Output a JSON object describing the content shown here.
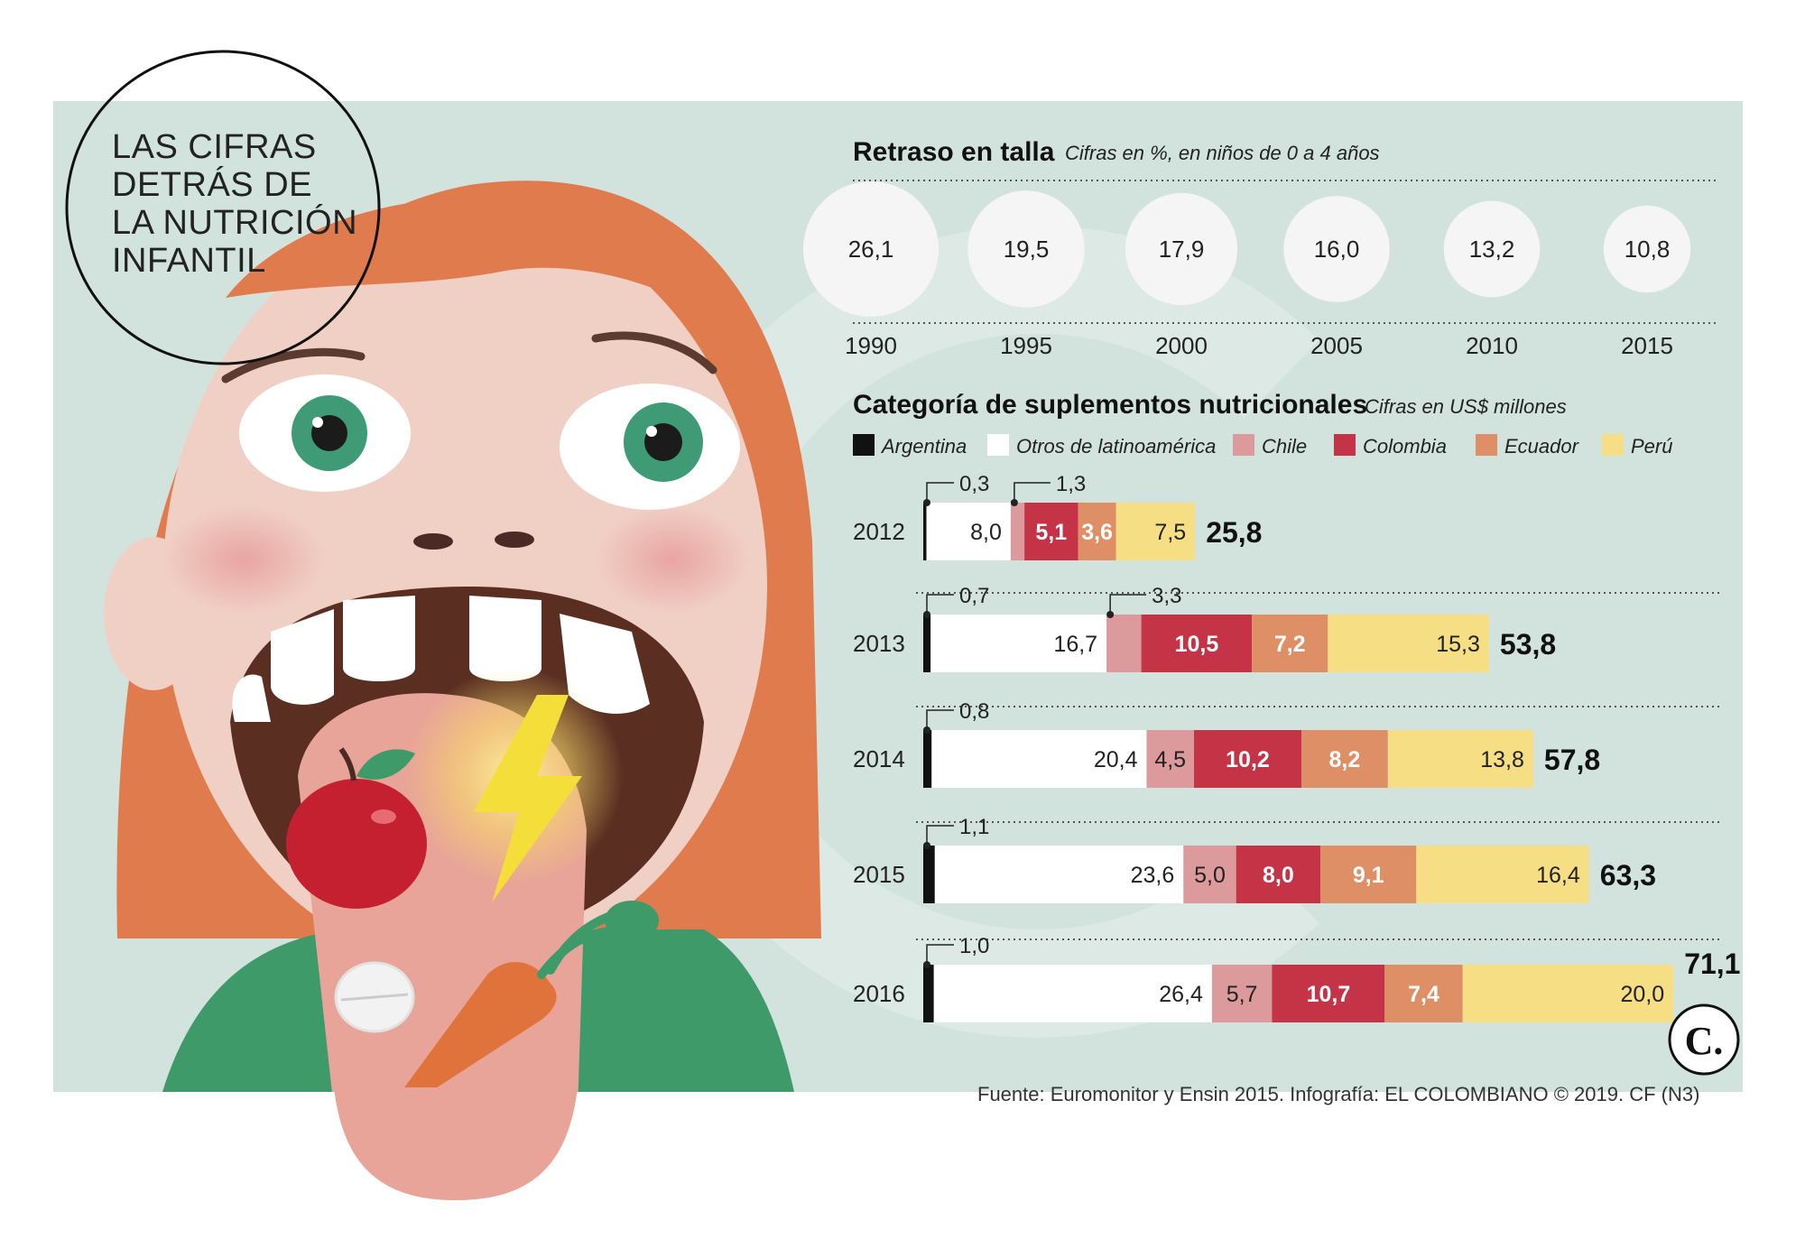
{
  "colors": {
    "background_panel": "#d2e3dd",
    "argentina": "#111111",
    "otros": "#ffffff",
    "chile": "#dd9a9c",
    "colombia": "#c43346",
    "ecuador": "#de8f66",
    "peru": "#f5de84",
    "circle": "#f5f5f5",
    "hair": "#e07b4d",
    "face": "#f0cfc4",
    "tongue": "#e8a498",
    "shirt": "#3f9a6a"
  },
  "header": {
    "title_lines": [
      "LAS CIFRAS",
      "DETRÁS DE",
      "LA NUTRICIÓN",
      "INFANTIL"
    ]
  },
  "stunting": {
    "title": "Retraso en talla",
    "subtitle": "Cifras en %, en niños de 0 a 4 años"
  },
  "supplements": {
    "title": "Categoría de suplementos nutricionales",
    "subtitle": "Cifras en US$ millones"
  },
  "illustration": {
    "icons": [
      "girl-face-icon",
      "apple-icon",
      "lightning-icon",
      "pill-icon",
      "carrot-icon"
    ]
  },
  "footer": {
    "source": "Fuente: Euromonitor y Ensin 2015. Infografía: EL COLOMBIANO © 2019. CF (N3)",
    "logo": "C."
  },
  "chart_data": [
    {
      "type": "bubble",
      "title": "Retraso en talla",
      "subtitle": "Cifras en %, en niños de 0 a 4 años",
      "categories": [
        "1990",
        "1995",
        "2000",
        "2005",
        "2010",
        "2015"
      ],
      "values": [
        26.1,
        19.5,
        17.9,
        16.0,
        13.2,
        10.8
      ],
      "value_labels": [
        "26,1",
        "19,5",
        "17,9",
        "16,0",
        "13,2",
        "10,8"
      ]
    },
    {
      "type": "bar",
      "orientation": "horizontal",
      "stacked": true,
      "title": "Categoría de suplementos nutricionales",
      "subtitle": "Cifras en US$ millones",
      "categories": [
        "2012",
        "2013",
        "2014",
        "2015",
        "2016"
      ],
      "legend_position": "top",
      "series": [
        {
          "name": "Argentina",
          "values": [
            0.3,
            0.7,
            0.8,
            1.1,
            1.0
          ],
          "labels": [
            "0,3",
            "0,7",
            "0,8",
            "1,1",
            "1,0"
          ]
        },
        {
          "name": "Otros de latinoamérica",
          "values": [
            8.0,
            16.7,
            20.4,
            23.6,
            26.4
          ],
          "labels": [
            "8,0",
            "16,7",
            "20,4",
            "23,6",
            "26,4"
          ]
        },
        {
          "name": "Chile",
          "values": [
            1.3,
            3.3,
            4.5,
            5.0,
            5.7
          ],
          "labels": [
            "1,3",
            "3,3",
            "4,5",
            "5,0",
            "5,7"
          ]
        },
        {
          "name": "Colombia",
          "values": [
            5.1,
            10.5,
            10.2,
            8.0,
            10.7
          ],
          "labels": [
            "5,1",
            "10,5",
            "10,2",
            "8,0",
            "10,7"
          ]
        },
        {
          "name": "Ecuador",
          "values": [
            3.6,
            7.2,
            8.2,
            9.1,
            7.4
          ],
          "labels": [
            "3,6",
            "7,2",
            "8,2",
            "9,1",
            "7,4"
          ]
        },
        {
          "name": "Perú",
          "values": [
            7.5,
            15.3,
            13.8,
            16.4,
            20.0
          ],
          "labels": [
            "7,5",
            "15,3",
            "13,8",
            "16,4",
            "20,0"
          ]
        }
      ],
      "totals": [
        25.8,
        53.8,
        57.8,
        63.3,
        71.1
      ],
      "total_labels": [
        "25,8",
        "53,8",
        "57,8",
        "63,3",
        "71,1"
      ]
    }
  ]
}
